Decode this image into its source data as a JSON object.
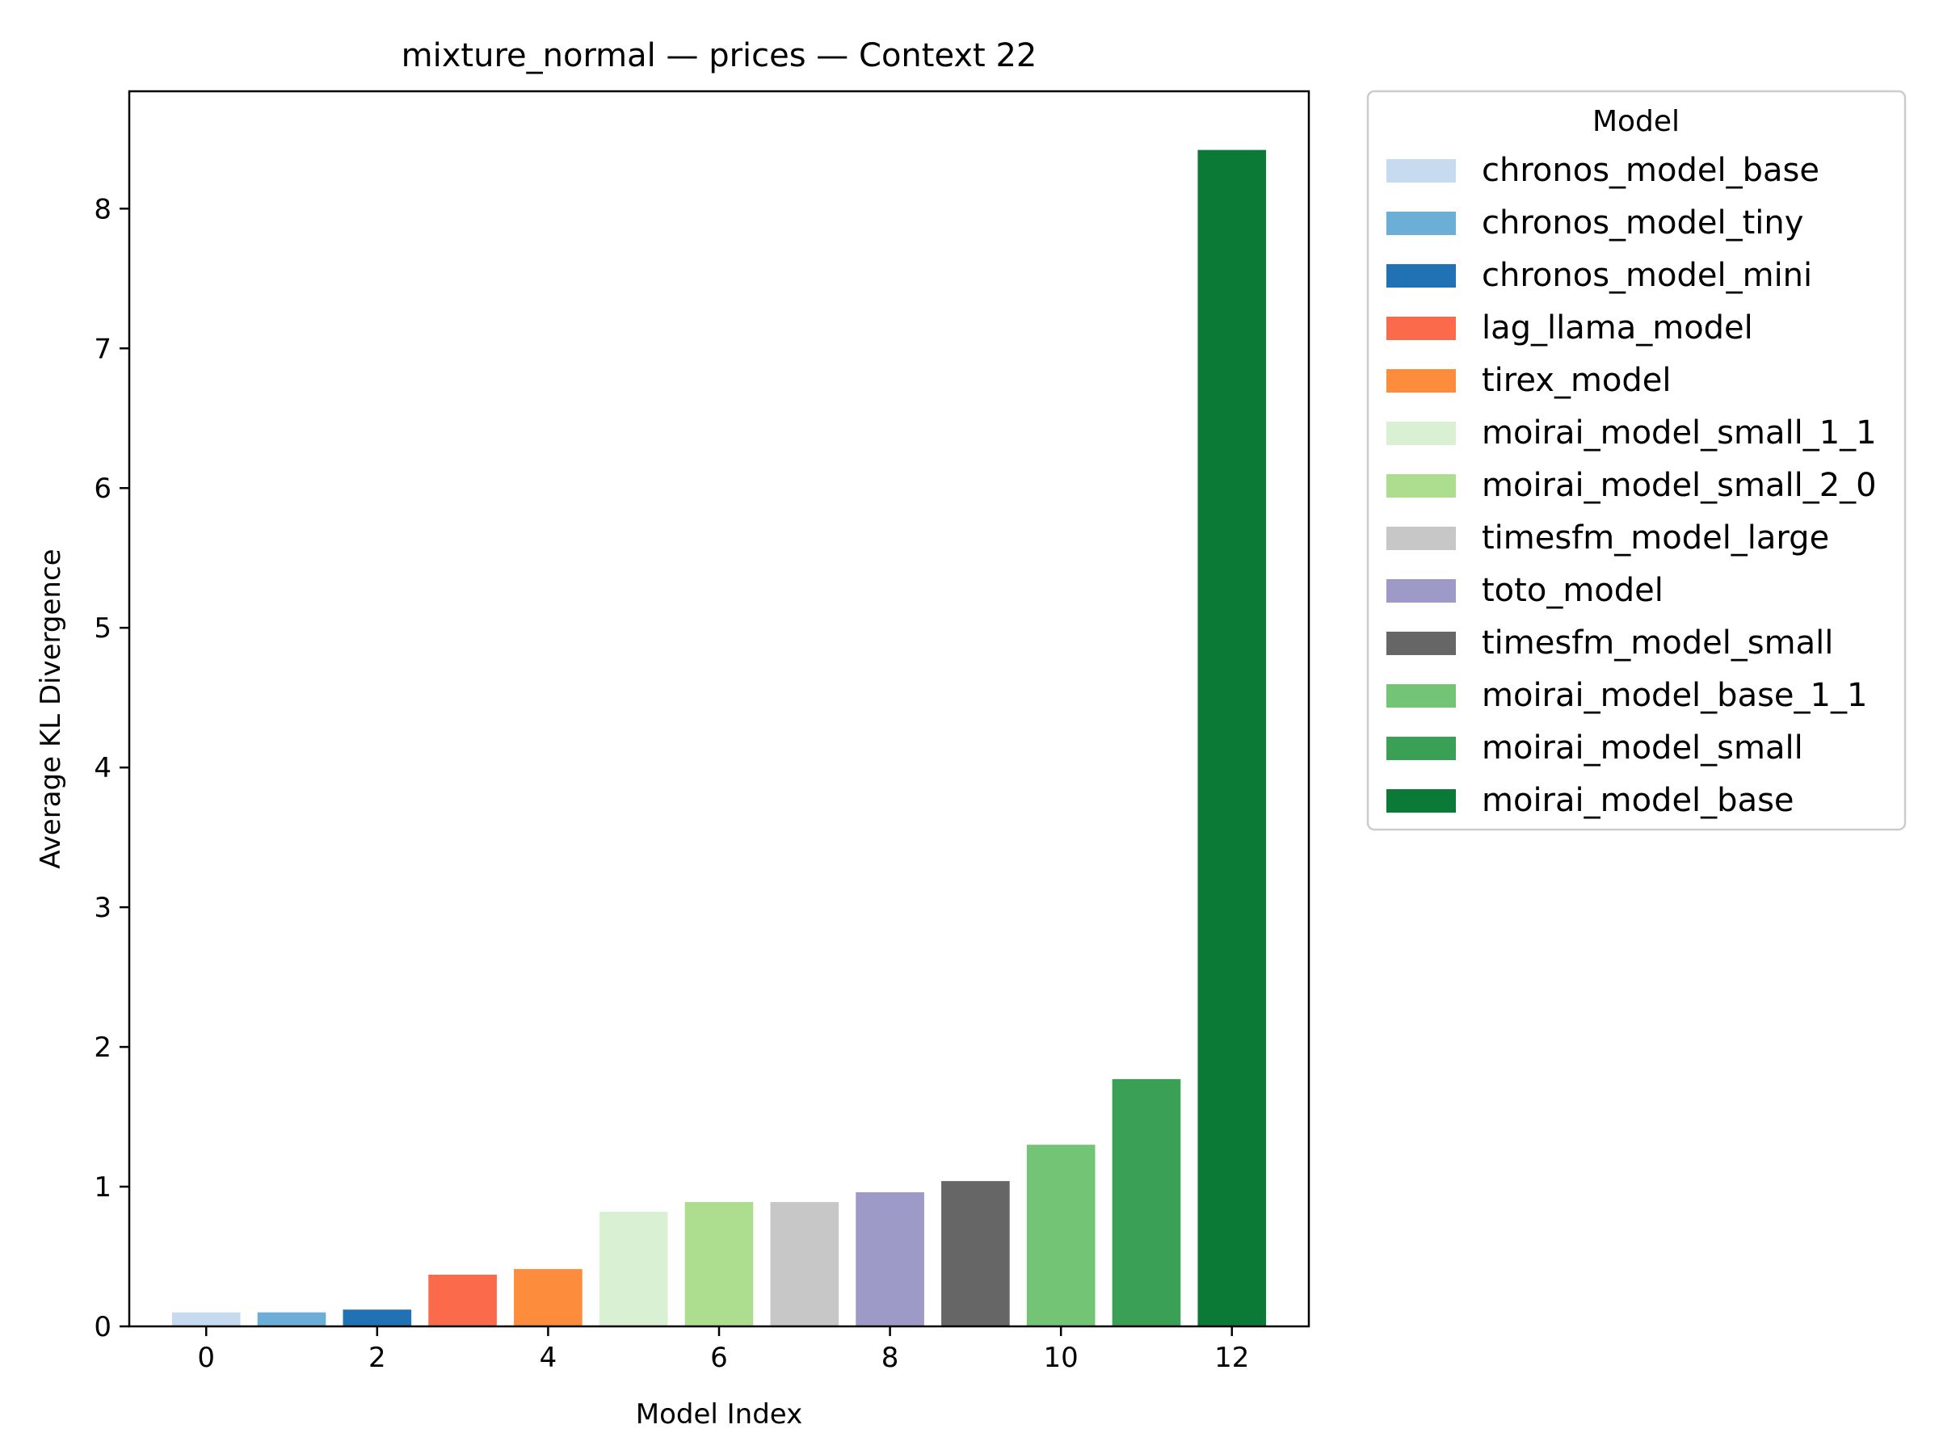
{
  "chart_data": {
    "type": "bar",
    "title": "mixture_normal — prices — Context 22",
    "xlabel": "Model Index",
    "ylabel": "Average KL Divergence",
    "x": [
      0,
      1,
      2,
      3,
      4,
      5,
      6,
      7,
      8,
      9,
      10,
      11,
      12
    ],
    "values": [
      0.1,
      0.1,
      0.12,
      0.37,
      0.41,
      0.82,
      0.89,
      0.89,
      0.96,
      1.04,
      1.3,
      1.77,
      8.42
    ],
    "colors": [
      "#c6dbef",
      "#6baed6",
      "#2171b5",
      "#fb6a4a",
      "#fd8d3c",
      "#d9f0d3",
      "#addd8e",
      "#c7c7c7",
      "#9e9ac8",
      "#666666",
      "#74c476",
      "#3aa055",
      "#0c7a37"
    ],
    "xlim": [
      -0.9,
      12.9
    ],
    "ylim": [
      0,
      8.84
    ],
    "xticks": [
      0,
      2,
      4,
      6,
      8,
      10,
      12
    ],
    "yticks": [
      0,
      1,
      2,
      3,
      4,
      5,
      6,
      7,
      8
    ],
    "grid": false,
    "legend": {
      "title": "Model",
      "placement": "outside-right",
      "entries": [
        {
          "label": "chronos_model_base",
          "color": "#c6dbef"
        },
        {
          "label": "chronos_model_tiny",
          "color": "#6baed6"
        },
        {
          "label": "chronos_model_mini",
          "color": "#2171b5"
        },
        {
          "label": "lag_llama_model",
          "color": "#fb6a4a"
        },
        {
          "label": "tirex_model",
          "color": "#fd8d3c"
        },
        {
          "label": "moirai_model_small_1_1",
          "color": "#d9f0d3"
        },
        {
          "label": "moirai_model_small_2_0",
          "color": "#addd8e"
        },
        {
          "label": "timesfm_model_large",
          "color": "#c7c7c7"
        },
        {
          "label": "toto_model",
          "color": "#9e9ac8"
        },
        {
          "label": "timesfm_model_small",
          "color": "#666666"
        },
        {
          "label": "moirai_model_base_1_1",
          "color": "#74c476"
        },
        {
          "label": "moirai_model_small",
          "color": "#3aa055"
        },
        {
          "label": "moirai_model_base",
          "color": "#0c7a37"
        }
      ]
    }
  }
}
